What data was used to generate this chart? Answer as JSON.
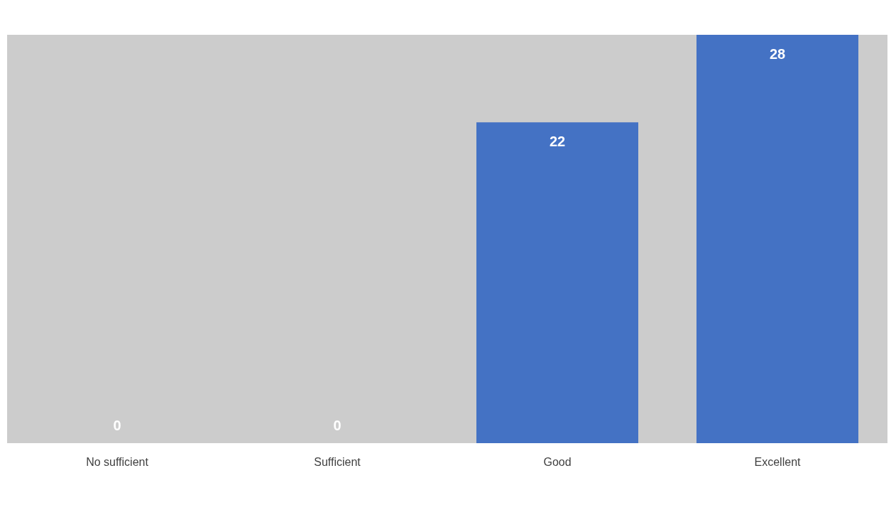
{
  "chart_data": {
    "type": "bar",
    "categories": [
      "No sufficient",
      "Sufficient",
      "Good",
      "Excellent"
    ],
    "values": [
      0,
      0,
      22,
      28
    ],
    "color": "#4472c4",
    "data_labels": true,
    "grid": false
  }
}
